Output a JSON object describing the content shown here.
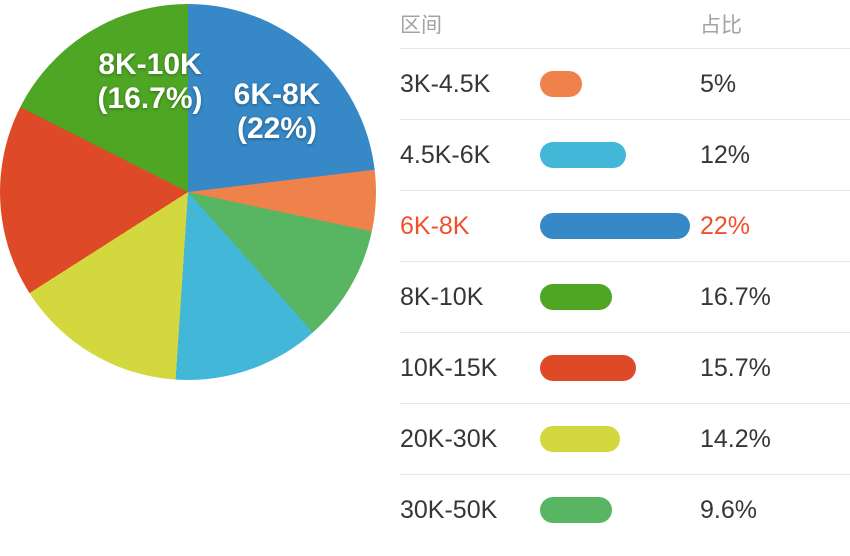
{
  "chart_data": {
    "type": "pie",
    "title": "",
    "legend_position": "right",
    "columns": {
      "range": "区间",
      "share": "占比"
    },
    "highlight_color": "#f0502c",
    "rows": [
      {
        "label": "3K-4.5K",
        "value": 5,
        "display": "5%",
        "color": "#ef814a",
        "swatch_width": 42,
        "highlighted": false
      },
      {
        "label": "4.5K-6K",
        "value": 12,
        "display": "12%",
        "color": "#43b7d8",
        "swatch_width": 86,
        "highlighted": false
      },
      {
        "label": "6K-8K",
        "value": 22,
        "display": "22%",
        "color": "#3688c6",
        "swatch_width": 150,
        "highlighted": true
      },
      {
        "label": "8K-10K",
        "value": 16.7,
        "display": "16.7%",
        "color": "#4ea624",
        "swatch_width": 72,
        "highlighted": false
      },
      {
        "label": "10K-15K",
        "value": 15.7,
        "display": "15.7%",
        "color": "#de4a28",
        "swatch_width": 96,
        "highlighted": false
      },
      {
        "label": "20K-30K",
        "value": 14.2,
        "display": "14.2%",
        "color": "#d3d83e",
        "swatch_width": 80,
        "highlighted": false
      },
      {
        "label": "30K-50K",
        "value": 9.6,
        "display": "9.6%",
        "color": "#58b663",
        "swatch_width": 72,
        "highlighted": false
      }
    ],
    "pie_order": [
      "6K-8K",
      "3K-4.5K",
      "30K-50K",
      "4.5K-6K",
      "20K-30K",
      "10K-15K",
      "8K-10K"
    ],
    "pie_labels": [
      {
        "line1": "8K-10K",
        "line2": "(16.7%)"
      },
      {
        "line1": "6K-8K",
        "line2": "(22%)"
      }
    ]
  }
}
